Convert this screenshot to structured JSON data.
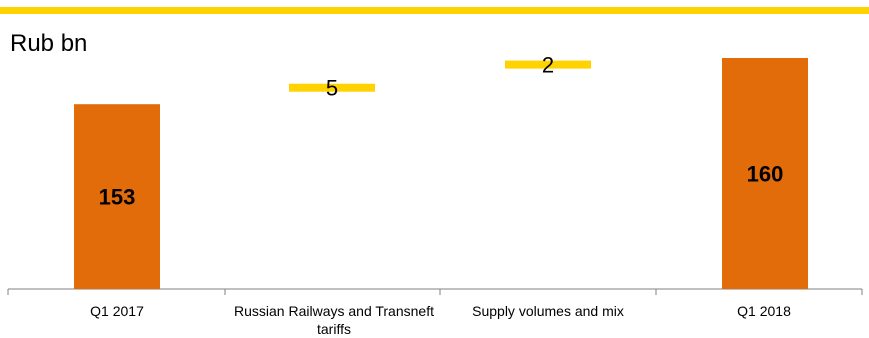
{
  "chart_data": {
    "type": "bar",
    "subtype": "waterfall",
    "unit_label": "Rub bn",
    "categories": [
      "Q1 2017",
      "Russian Railways and Transneft tariffs",
      "Supply volumes and mix",
      "Q1 2018"
    ],
    "steps": [
      {
        "category": "Q1 2017",
        "kind": "total",
        "value": 153,
        "label": "153"
      },
      {
        "category": "Russian Railways and Transneft tariffs",
        "kind": "delta",
        "value": 5,
        "label": "5"
      },
      {
        "category": "Supply volumes and mix",
        "kind": "delta",
        "value": 2,
        "label": "2"
      },
      {
        "category": "Q1 2018",
        "kind": "total",
        "value": 160,
        "label": "160"
      }
    ],
    "legend": "none",
    "grid": false
  },
  "colors": {
    "total_bar": "#E36C0A",
    "delta_bar": "#FFD200",
    "top_rule": "#FFD200",
    "axis": "#808080"
  }
}
